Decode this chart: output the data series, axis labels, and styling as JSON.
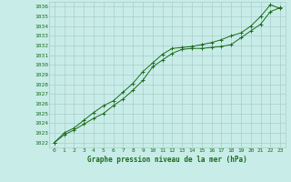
{
  "title": "Graphe pression niveau de la mer (hPa)",
  "x_values": [
    0,
    1,
    2,
    3,
    4,
    5,
    6,
    7,
    8,
    9,
    10,
    11,
    12,
    13,
    14,
    15,
    16,
    17,
    18,
    19,
    20,
    21,
    22,
    23
  ],
  "line1": [
    1022.0,
    1022.8,
    1023.3,
    1023.9,
    1024.5,
    1025.0,
    1025.8,
    1026.5,
    1027.4,
    1028.4,
    1029.8,
    1030.5,
    1031.2,
    1031.6,
    1031.7,
    1031.7,
    1031.8,
    1031.9,
    1032.1,
    1032.8,
    1033.5,
    1034.2,
    1035.5,
    1035.9
  ],
  "line2": [
    1022.0,
    1023.0,
    1023.5,
    1024.3,
    1025.1,
    1025.8,
    1026.3,
    1027.2,
    1028.1,
    1029.3,
    1030.2,
    1031.1,
    1031.7,
    1031.8,
    1031.9,
    1032.1,
    1032.3,
    1032.6,
    1033.0,
    1033.3,
    1034.0,
    1035.0,
    1036.2,
    1035.8
  ],
  "line_color": "#1a6b1a",
  "bg_color": "#c8ede8",
  "grid_color": "#aacccc",
  "ylim_min": 1021.5,
  "ylim_max": 1036.5,
  "xlim_min": -0.5,
  "xlim_max": 23.5,
  "ytick_min": 1022,
  "ytick_max": 1036,
  "xtick_labels": [
    "0",
    "1",
    "2",
    "3",
    "4",
    "5",
    "6",
    "7",
    "8",
    "9",
    "10",
    "11",
    "12",
    "13",
    "14",
    "15",
    "16",
    "17",
    "18",
    "19",
    "20",
    "21",
    "22",
    "23"
  ]
}
